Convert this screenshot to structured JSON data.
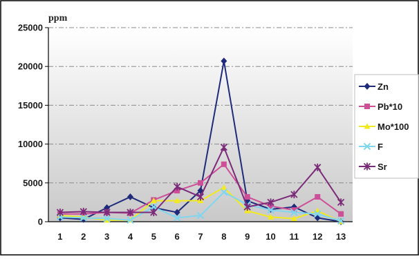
{
  "chart_data": {
    "type": "line",
    "title": "",
    "unit_label": "ppm",
    "xlabel": "",
    "ylabel": "",
    "categories": [
      "1",
      "2",
      "3",
      "4",
      "5",
      "6",
      "7",
      "8",
      "9",
      "10",
      "11",
      "12",
      "13"
    ],
    "ylim": [
      0,
      25000
    ],
    "yticks": [
      "0",
      "5000",
      "10000",
      "15000",
      "20000",
      "25000"
    ],
    "grid": true,
    "legend_position": "right",
    "series": [
      {
        "name": "Zn",
        "color": "#1f2a7a",
        "marker": "diamond",
        "values": [
          500,
          300,
          1800,
          3200,
          1800,
          1200,
          4000,
          20700,
          2700,
          1600,
          1900,
          500,
          0
        ]
      },
      {
        "name": "Pb*10",
        "color": "#cc4f98",
        "marker": "square",
        "values": [
          1000,
          1000,
          1200,
          1100,
          2800,
          4000,
          5000,
          7400,
          3200,
          2000,
          1500,
          3200,
          1000
        ]
      },
      {
        "name": "Mo*100",
        "color": "#f2ea1f",
        "marker": "triangle",
        "values": [
          800,
          600,
          200,
          200,
          2700,
          2700,
          2700,
          4400,
          1400,
          600,
          400,
          1400,
          0
        ]
      },
      {
        "name": "F",
        "color": "#7fd6ee",
        "marker": "x",
        "values": [
          600,
          500,
          400,
          200,
          1900,
          500,
          800,
          3800,
          2200,
          1500,
          1200,
          1000,
          100
        ]
      },
      {
        "name": "Sr",
        "color": "#7a2a78",
        "marker": "star",
        "values": [
          1200,
          1300,
          1200,
          1200,
          1200,
          4500,
          3200,
          9600,
          1900,
          2500,
          3500,
          7000,
          2500
        ]
      }
    ]
  }
}
